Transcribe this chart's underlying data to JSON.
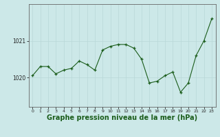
{
  "x": [
    0,
    1,
    2,
    3,
    4,
    5,
    6,
    7,
    8,
    9,
    10,
    11,
    12,
    13,
    14,
    15,
    16,
    17,
    18,
    19,
    20,
    21,
    22,
    23
  ],
  "y": [
    1020.05,
    1020.3,
    1020.3,
    1020.1,
    1020.2,
    1020.25,
    1020.45,
    1020.35,
    1020.2,
    1020.75,
    1020.85,
    1020.9,
    1020.9,
    1020.8,
    1020.5,
    1019.85,
    1019.9,
    1020.05,
    1020.15,
    1019.6,
    1019.85,
    1020.6,
    1021.0,
    1021.6
  ],
  "bg_color": "#cce8e8",
  "grid_color_v": "#b8d8d8",
  "grid_color_h": "#b8d8d8",
  "line_color": "#1a5c1a",
  "marker_color": "#1a5c1a",
  "xlabel": "Graphe pression niveau de la mer (hPa)",
  "xlabel_fontsize": 7,
  "ytick_labels": [
    "1020",
    "1021"
  ],
  "ytick_values": [
    1020,
    1021
  ],
  "ylim": [
    1019.2,
    1022.0
  ],
  "xlim": [
    -0.5,
    23.5
  ],
  "xtick_labels": [
    "0",
    "1",
    "2",
    "3",
    "4",
    "5",
    "6",
    "7",
    "8",
    "9",
    "10",
    "11",
    "12",
    "13",
    "14",
    "15",
    "16",
    "17",
    "18",
    "19",
    "20",
    "21",
    "22",
    "23"
  ],
  "figsize": [
    3.2,
    2.0
  ],
  "dpi": 100
}
